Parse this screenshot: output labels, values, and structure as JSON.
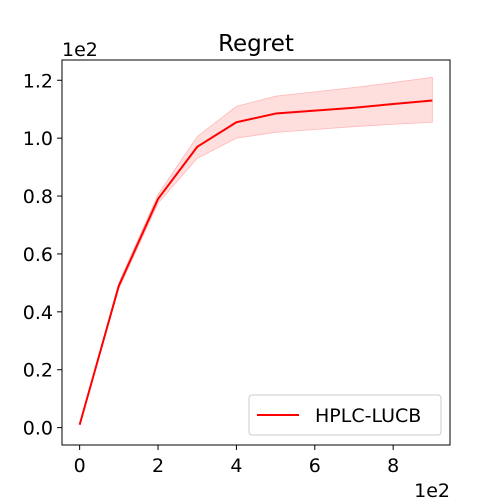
{
  "chart_data": {
    "type": "line",
    "title": "Regret",
    "xlabel": "",
    "ylabel": "",
    "x_offset_label": "1e2",
    "y_offset_label": "1e2",
    "xlim": [
      -0.45,
      9.45
    ],
    "ylim": [
      -0.06,
      1.27
    ],
    "x_ticks": [
      0,
      2,
      4,
      6,
      8
    ],
    "x_tick_labels": [
      "0",
      "2",
      "4",
      "6",
      "8"
    ],
    "y_ticks": [
      0.0,
      0.2,
      0.4,
      0.6,
      0.8,
      1.0,
      1.2
    ],
    "y_tick_labels": [
      "0.0",
      "0.2",
      "0.4",
      "0.6",
      "0.8",
      "1.0",
      "1.2"
    ],
    "grid": false,
    "legend_position": "bottom-right",
    "series": [
      {
        "name": "HPLC-LUCB",
        "color": "#ff0000",
        "band_color": "#ffdede",
        "x": [
          0,
          1,
          2,
          3,
          4,
          5,
          6,
          7,
          8,
          9
        ],
        "y": [
          0.01,
          0.49,
          0.79,
          0.97,
          1.055,
          1.085,
          1.095,
          1.105,
          1.118,
          1.13
        ],
        "y_lower": [
          0.01,
          0.48,
          0.775,
          0.93,
          1.0,
          1.02,
          1.03,
          1.04,
          1.048,
          1.055
        ],
        "y_upper": [
          0.01,
          0.5,
          0.805,
          1.005,
          1.11,
          1.145,
          1.16,
          1.175,
          1.192,
          1.21
        ]
      }
    ]
  }
}
